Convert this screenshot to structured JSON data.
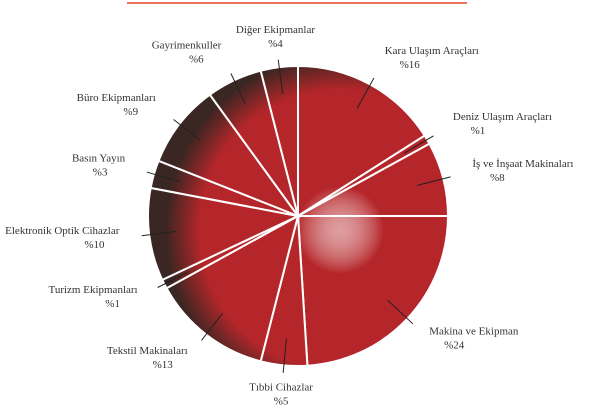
{
  "chart_data": {
    "type": "pie",
    "categories": [
      "Kara Ulaşım Araçları",
      "Deniz Ulaşım Araçları",
      "İş ve İnşaat Makinaları",
      "Makina ve Ekipman",
      "Tıbbi Cihazlar",
      "Tekstil Makinaları",
      "Turizm Ekipmanları",
      "Elektronik Optik Cihazlar",
      "Basın Yayın",
      "Büro Ekipmanları",
      "Gayrimenkuller",
      "Diğer Ekipmanlar"
    ],
    "values": [
      16,
      1,
      8,
      24,
      5,
      13,
      1,
      10,
      3,
      9,
      6,
      4
    ],
    "value_labels": [
      "%16",
      "%1",
      "%8",
      "%24",
      "%5",
      "%13",
      "%1",
      "%10",
      "%3",
      "%9",
      "%6",
      "%4"
    ],
    "color": "#b5262a"
  }
}
